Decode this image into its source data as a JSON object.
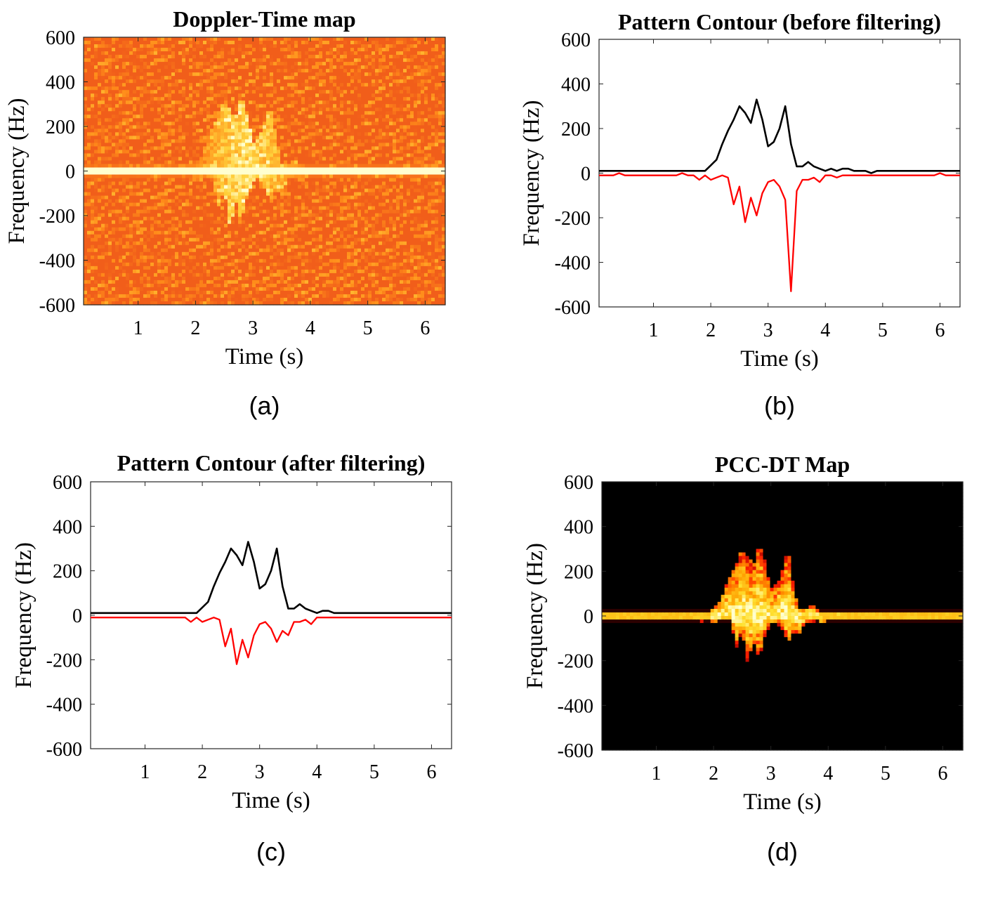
{
  "chart_data": [
    {
      "panel": "(a)",
      "type": "heatmap",
      "title": "Doppler-Time map",
      "xlabel": "Time (s)",
      "ylabel": "Frequency (Hz)",
      "xlim": [
        0.05,
        6.35
      ],
      "ylim": [
        -600,
        600
      ],
      "xticks": [
        1,
        2,
        3,
        4,
        5,
        6
      ],
      "yticks": [
        600,
        400,
        200,
        0,
        -200,
        -400,
        -600
      ],
      "colormap": [
        "#b01212",
        "#e8401a",
        "#ff8c1a",
        "#ffd23c",
        "#ffffd0"
      ],
      "background_level": 0.35,
      "features": [
        {
          "kind": "zero-doppler-band",
          "y": 0,
          "intensity": 0.95
        },
        {
          "kind": "activity-blob",
          "t_center": 2.9,
          "t_span": [
            2.0,
            4.0
          ],
          "f_span": [
            -220,
            320
          ],
          "intensity": 0.75
        }
      ]
    },
    {
      "panel": "(b)",
      "type": "line",
      "title": "Pattern Contour (before filtering)",
      "xlabel": "Time (s)",
      "ylabel": "Frequency (Hz)",
      "xlim": [
        0.05,
        6.35
      ],
      "ylim": [
        -600,
        600
      ],
      "xticks": [
        1,
        2,
        3,
        4,
        5,
        6
      ],
      "yticks": [
        600,
        400,
        200,
        0,
        -200,
        -400,
        -600
      ],
      "series": [
        {
          "color": "#000000",
          "points": [
            [
              0.05,
              10
            ],
            [
              1.9,
              10
            ],
            [
              2.0,
              35
            ],
            [
              2.1,
              60
            ],
            [
              2.2,
              130
            ],
            [
              2.3,
              190
            ],
            [
              2.4,
              240
            ],
            [
              2.5,
              300
            ],
            [
              2.6,
              270
            ],
            [
              2.7,
              225
            ],
            [
              2.8,
              330
            ],
            [
              2.9,
              240
            ],
            [
              3.0,
              120
            ],
            [
              3.1,
              140
            ],
            [
              3.2,
              200
            ],
            [
              3.3,
              300
            ],
            [
              3.4,
              130
            ],
            [
              3.5,
              30
            ],
            [
              3.6,
              30
            ],
            [
              3.7,
              50
            ],
            [
              3.8,
              30
            ],
            [
              3.9,
              20
            ],
            [
              4.0,
              10
            ],
            [
              4.1,
              20
            ],
            [
              4.2,
              10
            ],
            [
              4.3,
              20
            ],
            [
              4.4,
              20
            ],
            [
              4.5,
              10
            ],
            [
              4.6,
              10
            ],
            [
              4.7,
              10
            ],
            [
              4.8,
              0
            ],
            [
              4.9,
              10
            ],
            [
              6.35,
              10
            ]
          ]
        },
        {
          "color": "#ff0000",
          "points": [
            [
              0.05,
              -10
            ],
            [
              0.3,
              -10
            ],
            [
              0.4,
              0
            ],
            [
              0.5,
              -10
            ],
            [
              1.4,
              -10
            ],
            [
              1.5,
              0
            ],
            [
              1.6,
              -10
            ],
            [
              1.7,
              -10
            ],
            [
              1.8,
              -30
            ],
            [
              1.9,
              -10
            ],
            [
              2.0,
              -30
            ],
            [
              2.1,
              -20
            ],
            [
              2.2,
              -10
            ],
            [
              2.3,
              -20
            ],
            [
              2.4,
              -140
            ],
            [
              2.5,
              -60
            ],
            [
              2.6,
              -220
            ],
            [
              2.7,
              -110
            ],
            [
              2.8,
              -190
            ],
            [
              2.9,
              -90
            ],
            [
              3.0,
              -40
            ],
            [
              3.1,
              -30
            ],
            [
              3.2,
              -60
            ],
            [
              3.3,
              -120
            ],
            [
              3.4,
              -530
            ],
            [
              3.5,
              -80
            ],
            [
              3.6,
              -30
            ],
            [
              3.7,
              -30
            ],
            [
              3.8,
              -20
            ],
            [
              3.9,
              -40
            ],
            [
              4.0,
              -10
            ],
            [
              4.1,
              -10
            ],
            [
              4.2,
              -20
            ],
            [
              4.3,
              -10
            ],
            [
              5.9,
              -10
            ],
            [
              6.0,
              0
            ],
            [
              6.1,
              -10
            ],
            [
              6.35,
              -10
            ]
          ]
        }
      ]
    },
    {
      "panel": "(c)",
      "type": "line",
      "title": "Pattern Contour (after filtering)",
      "xlabel": "Time (s)",
      "ylabel": "Frequency (Hz)",
      "xlim": [
        0.05,
        6.35
      ],
      "ylim": [
        -600,
        600
      ],
      "xticks": [
        1,
        2,
        3,
        4,
        5,
        6
      ],
      "yticks": [
        600,
        400,
        200,
        0,
        -200,
        -400,
        -600
      ],
      "series": [
        {
          "color": "#000000",
          "points": [
            [
              0.05,
              10
            ],
            [
              1.9,
              10
            ],
            [
              2.0,
              35
            ],
            [
              2.1,
              60
            ],
            [
              2.2,
              130
            ],
            [
              2.3,
              190
            ],
            [
              2.4,
              240
            ],
            [
              2.5,
              300
            ],
            [
              2.6,
              270
            ],
            [
              2.7,
              225
            ],
            [
              2.8,
              330
            ],
            [
              2.9,
              240
            ],
            [
              3.0,
              120
            ],
            [
              3.1,
              140
            ],
            [
              3.2,
              200
            ],
            [
              3.3,
              300
            ],
            [
              3.4,
              130
            ],
            [
              3.5,
              30
            ],
            [
              3.6,
              30
            ],
            [
              3.7,
              50
            ],
            [
              3.8,
              30
            ],
            [
              3.9,
              20
            ],
            [
              4.0,
              10
            ],
            [
              4.1,
              20
            ],
            [
              4.2,
              20
            ],
            [
              4.3,
              10
            ],
            [
              6.35,
              10
            ]
          ]
        },
        {
          "color": "#ff0000",
          "points": [
            [
              0.05,
              -10
            ],
            [
              1.7,
              -10
            ],
            [
              1.8,
              -30
            ],
            [
              1.9,
              -10
            ],
            [
              2.0,
              -30
            ],
            [
              2.1,
              -20
            ],
            [
              2.2,
              -10
            ],
            [
              2.3,
              -20
            ],
            [
              2.4,
              -140
            ],
            [
              2.5,
              -60
            ],
            [
              2.6,
              -220
            ],
            [
              2.7,
              -110
            ],
            [
              2.8,
              -190
            ],
            [
              2.9,
              -90
            ],
            [
              3.0,
              -40
            ],
            [
              3.1,
              -30
            ],
            [
              3.2,
              -60
            ],
            [
              3.3,
              -120
            ],
            [
              3.4,
              -70
            ],
            [
              3.5,
              -90
            ],
            [
              3.6,
              -30
            ],
            [
              3.7,
              -30
            ],
            [
              3.8,
              -20
            ],
            [
              3.9,
              -40
            ],
            [
              4.0,
              -10
            ],
            [
              6.35,
              -10
            ]
          ]
        }
      ]
    },
    {
      "panel": "(d)",
      "type": "heatmap",
      "title": "PCC-DT Map",
      "xlabel": "Time (s)",
      "ylabel": "Frequency (Hz)",
      "xlim": [
        0.05,
        6.35
      ],
      "ylim": [
        -600,
        600
      ],
      "xticks": [
        1,
        2,
        3,
        4,
        5,
        6
      ],
      "yticks": [
        600,
        400,
        200,
        0,
        -200,
        -400,
        -600
      ],
      "colormap": [
        "#000000",
        "#a00000",
        "#ff2000",
        "#ffa000",
        "#ffe030",
        "#ffffd0"
      ],
      "background_level": 0.0,
      "features": [
        {
          "kind": "zero-doppler-band",
          "y": 0,
          "intensity": 0.95
        },
        {
          "kind": "masked-by-contour",
          "note": "energy confined between upper and lower pattern contours"
        }
      ]
    }
  ]
}
